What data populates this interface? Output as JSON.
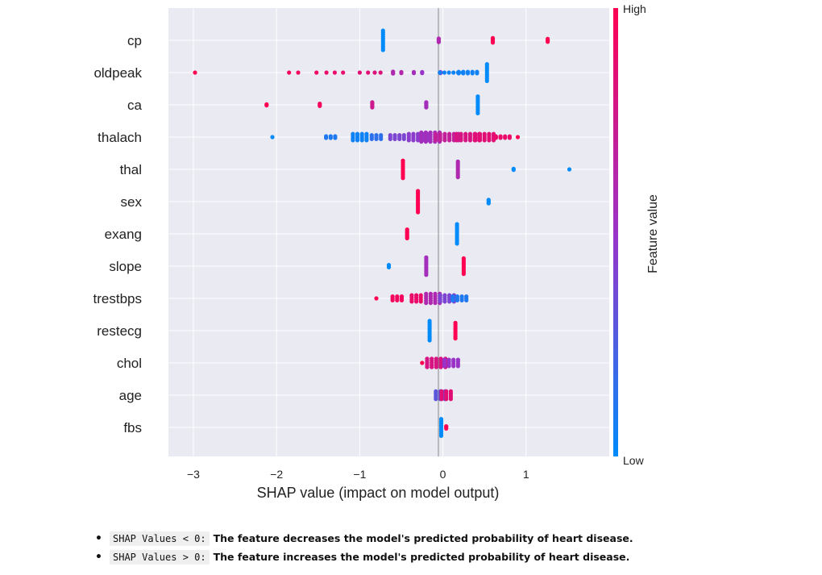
{
  "chart_data": {
    "type": "scatter",
    "title": "",
    "xlabel": "SHAP value (impact on model output)",
    "xlim": [
      -3.3,
      2.0
    ],
    "xticks": [
      -3,
      -2,
      -1,
      0,
      1
    ],
    "xtick_labels": [
      "−3",
      "−2",
      "−1",
      "0",
      "1"
    ],
    "grid": true,
    "colorbar": {
      "label": "Feature value",
      "high_label": "High",
      "low_label": "Low",
      "low_color": "#008bfb",
      "high_color": "#ff0052",
      "mid_color": "#9a33c8"
    },
    "features": [
      {
        "name": "cp",
        "clusters": [
          [
            -0.72,
            0.0,
            1,
            11,
            2.4
          ],
          [
            -0.05,
            0.6,
            1,
            4,
            1.4
          ],
          [
            0.6,
            1.0,
            1,
            5,
            1.4
          ],
          [
            1.26,
            1.0,
            1,
            4,
            1.2
          ]
        ]
      },
      {
        "name": "oldpeak",
        "clusters": [
          [
            -2.98,
            1.0,
            1,
            1,
            0
          ],
          [
            -1.85,
            0.95,
            1,
            1,
            0
          ],
          [
            -1.74,
            0.95,
            1,
            1,
            0
          ],
          [
            -1.52,
            0.92,
            1,
            1,
            0
          ],
          [
            -1.4,
            0.9,
            1,
            1,
            0
          ],
          [
            -1.3,
            0.9,
            1,
            1,
            0
          ],
          [
            -1.2,
            0.88,
            1,
            1,
            0
          ],
          [
            -1.0,
            0.85,
            1,
            1,
            0
          ],
          [
            -0.9,
            0.85,
            1,
            1,
            0
          ],
          [
            -0.82,
            0.82,
            1,
            1,
            0
          ],
          [
            -0.75,
            0.82,
            1,
            1,
            0
          ],
          [
            -0.6,
            0.6,
            1,
            3,
            1.2
          ],
          [
            -0.5,
            0.62,
            1,
            2,
            1.2
          ],
          [
            -0.35,
            0.55,
            1,
            2,
            1.2
          ],
          [
            -0.25,
            0.5,
            1,
            2,
            1.2
          ],
          [
            -0.03,
            0.4,
            1,
            2,
            1.4
          ],
          [
            0.1,
            0.05,
            6,
            1,
            0
          ],
          [
            0.3,
            0.05,
            5,
            2,
            1.8
          ],
          [
            0.53,
            0.0,
            1,
            9,
            2.6
          ]
        ]
      },
      {
        "name": "ca",
        "clusters": [
          [
            -2.12,
            1.0,
            1,
            2,
            1.2
          ],
          [
            -1.48,
            0.95,
            1,
            3,
            1.4
          ],
          [
            -0.85,
            0.75,
            1,
            5,
            1.6
          ],
          [
            -0.2,
            0.55,
            1,
            5,
            1.6
          ],
          [
            0.42,
            0.0,
            1,
            9,
            2.6
          ]
        ]
      },
      {
        "name": "thalach",
        "clusters": [
          [
            -2.05,
            0.0,
            1,
            1,
            0
          ],
          [
            -1.35,
            0.1,
            3,
            2,
            2.0
          ],
          [
            -1.0,
            0.05,
            4,
            4,
            2.6
          ],
          [
            -0.8,
            0.15,
            3,
            3,
            2.4
          ],
          [
            -0.55,
            0.4,
            4,
            3,
            2.4
          ],
          [
            -0.3,
            0.45,
            5,
            4,
            2.6
          ],
          [
            -0.15,
            0.55,
            5,
            5,
            2.8
          ],
          [
            0.05,
            0.7,
            6,
            4,
            2.6
          ],
          [
            0.3,
            0.8,
            6,
            4,
            2.6
          ],
          [
            0.5,
            0.85,
            5,
            4,
            2.6
          ],
          [
            0.72,
            0.9,
            4,
            2,
            1.8
          ],
          [
            0.9,
            1.0,
            1,
            1,
            0
          ]
        ]
      },
      {
        "name": "thal",
        "clusters": [
          [
            -0.48,
            1.0,
            1,
            10,
            2.4
          ],
          [
            0.18,
            0.6,
            1,
            9,
            2.4
          ],
          [
            0.85,
            0.0,
            1,
            2,
            1.2
          ],
          [
            1.52,
            0.0,
            1,
            1,
            0
          ]
        ]
      },
      {
        "name": "sex",
        "clusters": [
          [
            -0.3,
            1.0,
            1,
            12,
            2.4
          ],
          [
            0.55,
            0.0,
            1,
            4,
            1.4
          ]
        ]
      },
      {
        "name": "exang",
        "clusters": [
          [
            -0.43,
            1.0,
            1,
            7,
            1.8
          ],
          [
            0.17,
            0.0,
            1,
            11,
            2.4
          ]
        ]
      },
      {
        "name": "slope",
        "clusters": [
          [
            -0.65,
            0.0,
            1,
            3,
            1.4
          ],
          [
            -0.2,
            0.55,
            1,
            10,
            2.4
          ],
          [
            0.25,
            1.0,
            1,
            9,
            2.4
          ]
        ]
      },
      {
        "name": "trestbps",
        "clusters": [
          [
            -0.8,
            1.0,
            1,
            1,
            0
          ],
          [
            -0.55,
            0.95,
            3,
            3,
            2.4
          ],
          [
            -0.32,
            0.9,
            3,
            4,
            2.6
          ],
          [
            -0.12,
            0.6,
            4,
            5,
            2.8
          ],
          [
            0.05,
            0.4,
            4,
            4,
            2.6
          ],
          [
            0.2,
            0.1,
            4,
            3,
            2.4
          ]
        ]
      },
      {
        "name": "restecg",
        "clusters": [
          [
            -0.16,
            0.0,
            1,
            11,
            2.4
          ],
          [
            0.15,
            1.0,
            1,
            9,
            2.4
          ]
        ]
      },
      {
        "name": "chol",
        "clusters": [
          [
            -0.25,
            1.0,
            1,
            1,
            0
          ],
          [
            -0.08,
            0.8,
            5,
            5,
            2.6
          ],
          [
            0.1,
            0.5,
            4,
            4,
            2.6
          ]
        ]
      },
      {
        "name": "age",
        "clusters": [
          [
            -0.03,
            0.3,
            3,
            5,
            2.4
          ],
          [
            0.04,
            0.85,
            3,
            5,
            2.4
          ]
        ]
      },
      {
        "name": "fbs",
        "clusters": [
          [
            -0.02,
            0.0,
            1,
            9,
            2.6
          ],
          [
            0.04,
            1.0,
            1,
            3,
            1.4
          ]
        ]
      }
    ]
  },
  "notes": [
    {
      "code": "SHAP Values < 0:",
      "text": "The feature decreases the model's predicted probability of heart disease."
    },
    {
      "code": "SHAP Values > 0:",
      "text": "The feature increases the model's predicted probability of heart disease."
    }
  ]
}
